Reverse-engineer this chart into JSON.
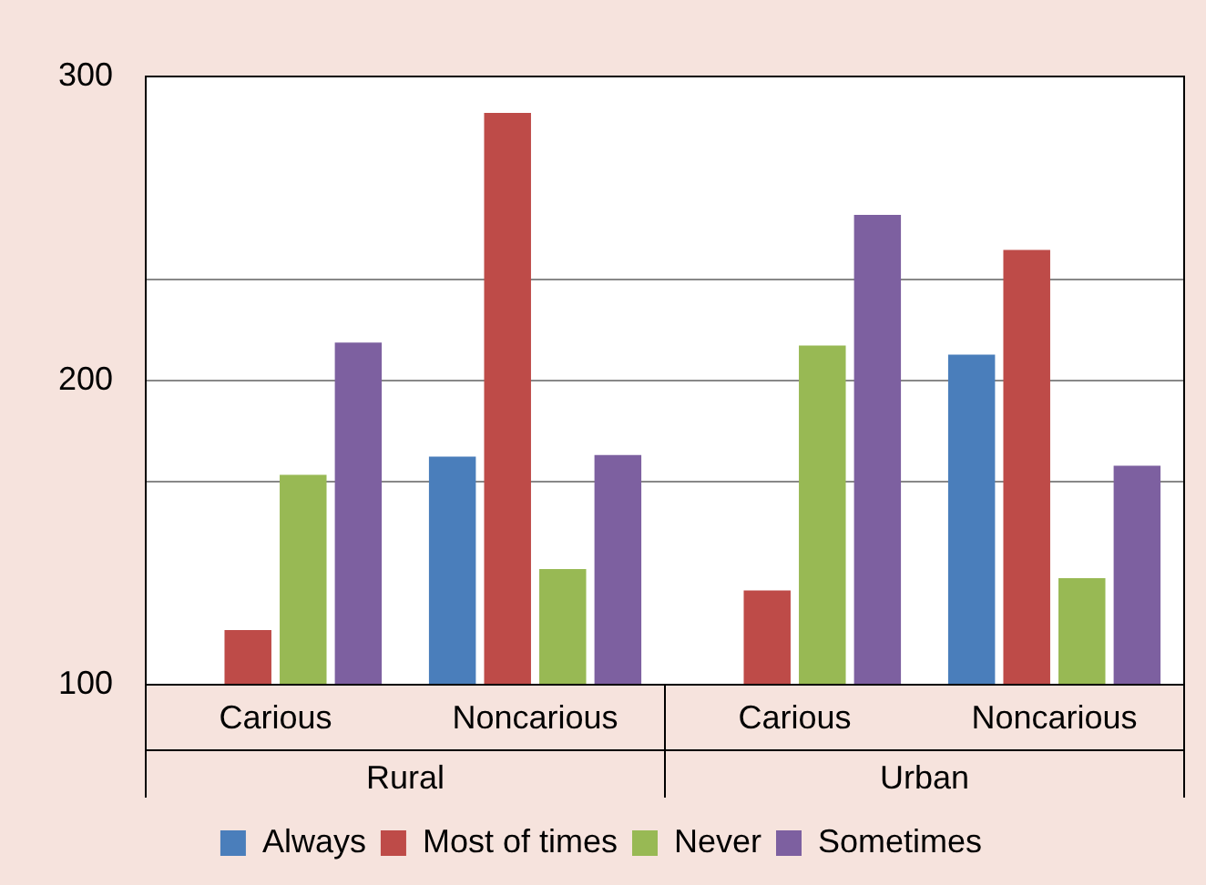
{
  "chart_data": {
    "type": "bar",
    "categories": [
      "Carious",
      "Noncarious",
      "Carious",
      "Noncarious"
    ],
    "annotations": [
      "Rural",
      "Urban"
    ],
    "series": [
      {
        "name": "Always",
        "color": "#4a7ebb",
        "values": [
          null,
          175,
          null,
          208.5
        ]
      },
      {
        "name": "Most of times",
        "color": "#be4b48",
        "values": [
          118,
          288,
          131,
          243
        ]
      },
      {
        "name": "Never",
        "color": "#98b954",
        "values": [
          169,
          138,
          211.5,
          135
        ]
      },
      {
        "name": "Sometimes",
        "color": "#7d60a0",
        "values": [
          212.5,
          175.5,
          254.5,
          172
        ]
      }
    ],
    "ylim": [
      100,
      300
    ],
    "yticks": [
      100,
      {
        "value": 166.7,
        "label": null
      },
      200,
      {
        "value": 233.3,
        "label": null
      },
      300
    ],
    "grid": "y",
    "legend": "bottom"
  }
}
